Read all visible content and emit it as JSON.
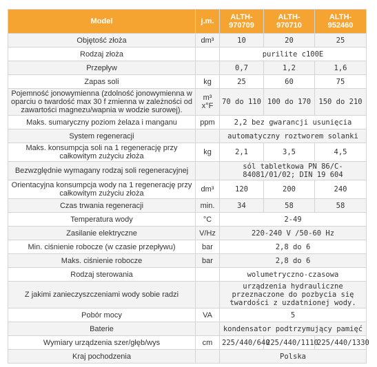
{
  "table": {
    "header": [
      "Model",
      "j.m.",
      "ALTH-970709",
      "ALTH-970710",
      "ALTH-952460"
    ],
    "rows": [
      {
        "label": "Objętość złoża",
        "unit": "dm³",
        "values": [
          "10",
          "20",
          "25"
        ]
      },
      {
        "label": "Rodzaj złoża",
        "values": [
          "purilite c100E"
        ]
      },
      {
        "label": "Przepływ",
        "values": [
          "0,7",
          "1,2",
          "1,6"
        ]
      },
      {
        "label": "Zapas soli",
        "unit": "kg",
        "values": [
          "25",
          "60",
          "75"
        ]
      },
      {
        "label": "Pojemność jonowymienna (zdolność jonowymienna w oparciu o twardość max 30 f zmienna w zależności od zawartości magnezu/wapnia w wodzie surowej).",
        "unit": "m³ x°F",
        "values": [
          "70 do 110",
          "100 do 170",
          "150 do 210"
        ]
      },
      {
        "label": "Maks. sumaryczny poziom żelaza i manganu",
        "unit": "ppm",
        "values": [
          "2,2 bez gwarancji usunięcia"
        ]
      },
      {
        "label": "System regeneracji",
        "values": [
          "automatyczny roztworem solanki"
        ]
      },
      {
        "label": "Maks. konsumpcja soli na 1 regenerację przy całkowitym zużyciu złoża",
        "unit": "kg",
        "values": [
          "2,1",
          "3,5",
          "4,5"
        ]
      },
      {
        "label": "Bezwzględnie wymagany rodzaj soli regeneracyjnej",
        "values": [
          "sól tabletkowa PN 86/C-84081/01/02; DIN 19 604"
        ]
      },
      {
        "label": "Orientacyjna konsumpcja wody na 1 regenerację przy całkowitym zużyciu złoża",
        "unit": "dm³",
        "values": [
          "120",
          "200",
          "240"
        ]
      },
      {
        "label": "Czas trwania regeneracji",
        "unit": "min.",
        "values": [
          "34",
          "58",
          "58"
        ]
      },
      {
        "label": "Temperatura wody",
        "unit": "°C",
        "values": [
          "2-49"
        ]
      },
      {
        "label": "Zasilanie elektryczne",
        "unit": "V/Hz",
        "values": [
          "220-240 V /50-60 Hz"
        ]
      },
      {
        "label": "Min. ciśnienie robocze (w czasie przepływu)",
        "unit": "bar",
        "values": [
          "2,8 do 6"
        ]
      },
      {
        "label": "Maks. ciśnienie robocze",
        "unit": "bar",
        "values": [
          "2,8 do 6"
        ]
      },
      {
        "label": "Rodzaj sterowania",
        "values": [
          "wolumetryczno-czasowa"
        ]
      },
      {
        "label": "Z jakimi zanieczyszczeniami wody sobie radzi",
        "values": [
          "urządzenia hydrauliczne przeznaczone do pozbycia się twardości z uzdatnionej wody."
        ]
      },
      {
        "label": "Pobór mocy",
        "unit": "VA",
        "values": [
          "5"
        ]
      },
      {
        "label": "Baterie",
        "values": [
          "kondensator podtrzymujący pamięć"
        ]
      },
      {
        "label": "Wymiary urządzenia szer/głęb/wys",
        "unit": "cm",
        "values": [
          "225/440/640",
          "225/440/1110",
          "225/440/1330"
        ]
      },
      {
        "label": "Kraj pochodzenia",
        "values": [
          "Polska"
        ]
      }
    ]
  }
}
